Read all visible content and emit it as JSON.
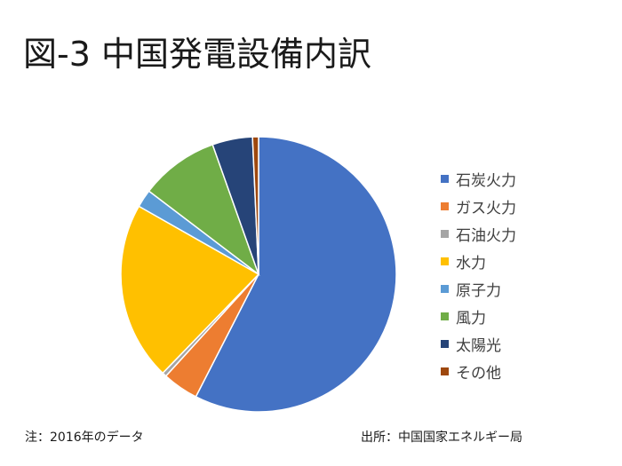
{
  "chart_data": {
    "type": "pie",
    "title": "図-3 中国発電設備内訳",
    "legend_position": "right",
    "categories": [
      "石炭火力",
      "ガス火力",
      "石油火力",
      "水力",
      "原子力",
      "風力",
      "太陽光",
      "その他"
    ],
    "values": [
      57.3,
      4.2,
      0.5,
      20.9,
      2.1,
      9.2,
      4.7,
      0.7
    ],
    "colors": [
      "#4472C4",
      "#ED7D31",
      "#A5A5A5",
      "#FFC000",
      "#5B9BD5",
      "#70AD47",
      "#264478",
      "#9E480E"
    ]
  },
  "footer": {
    "note": "注：2016年のデータ",
    "source": "出所：中国国家エネルギー局"
  }
}
